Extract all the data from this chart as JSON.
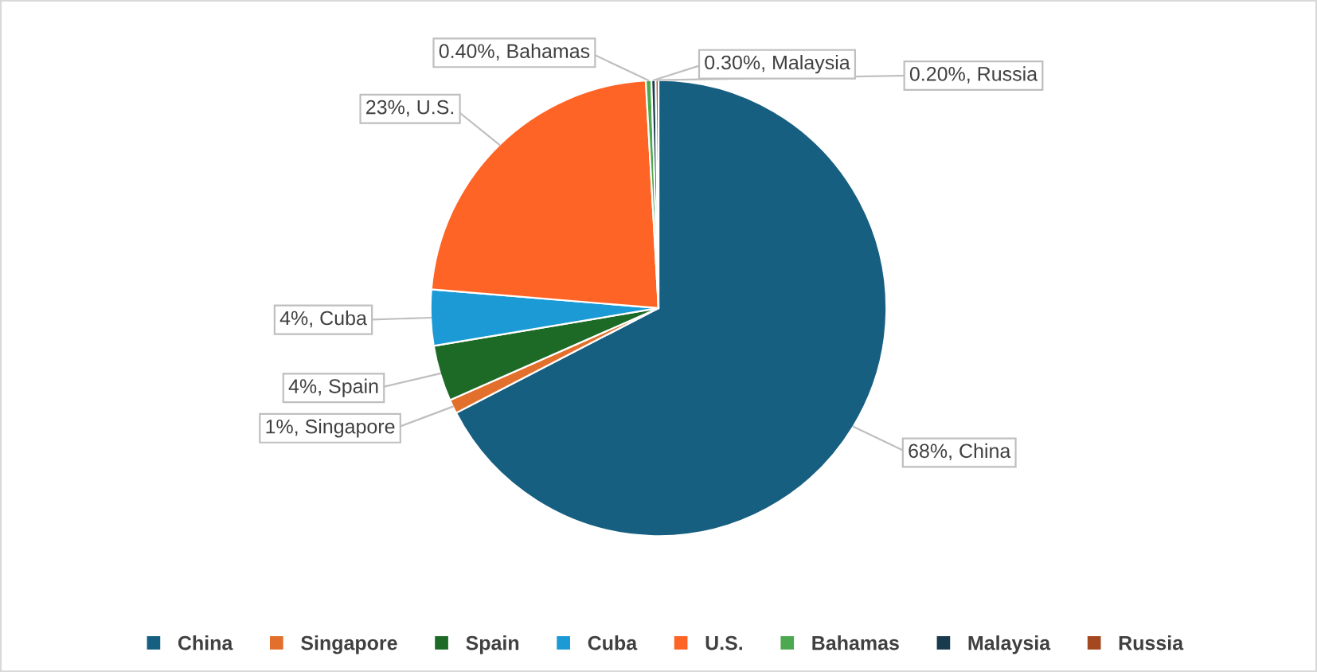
{
  "chart_data": {
    "type": "pie",
    "categories": [
      "China",
      "Singapore",
      "Spain",
      "Cuba",
      "U.S.",
      "Bahamas",
      "Malaysia",
      "Russia"
    ],
    "values": [
      68,
      1,
      4,
      4,
      23,
      0.4,
      0.3,
      0.2
    ],
    "colors": [
      "#175f80",
      "#e2702c",
      "#1d6a27",
      "#1b9ad6",
      "#fe6425",
      "#4ca94f",
      "#1a3a4d",
      "#a3481f"
    ],
    "value_labels": [
      "68%, China",
      "1%, Singapore",
      "4%, Spain",
      "4%, Cuba",
      "23%, U.S.",
      "0.40%, Bahamas",
      "0.30%, Malaysia",
      "0.20%, Russia"
    ],
    "legend": "bottom"
  }
}
